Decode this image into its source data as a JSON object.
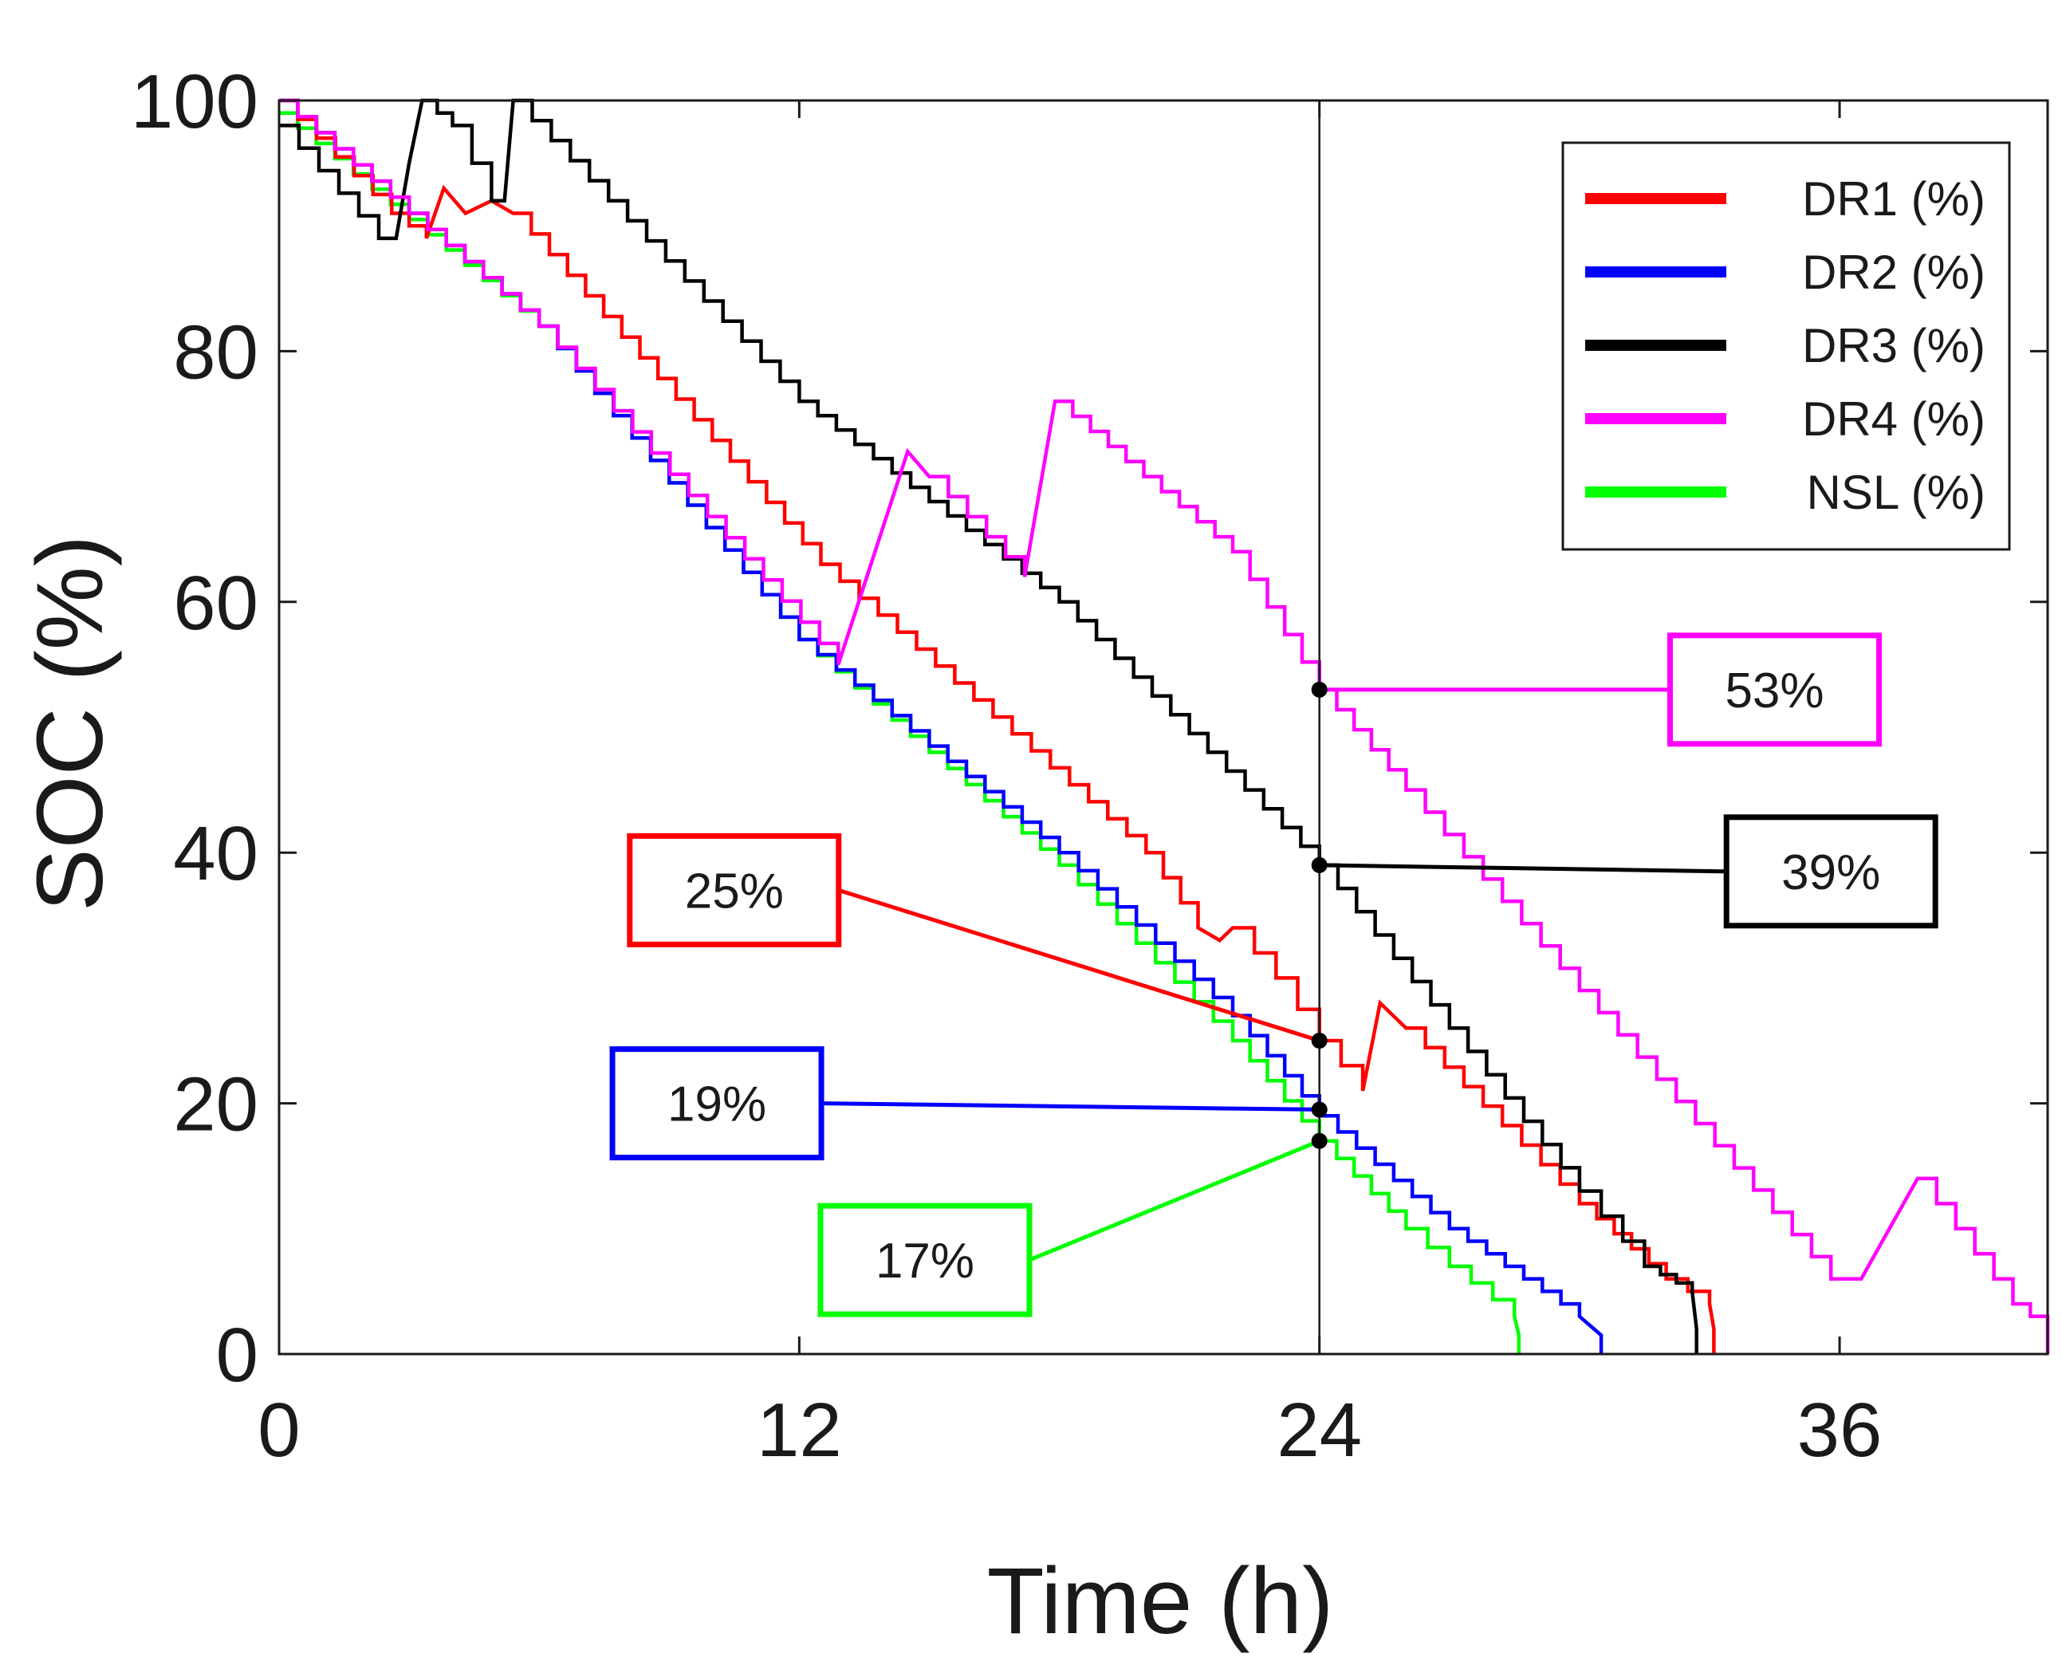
{
  "chart_data": {
    "type": "line",
    "title": "",
    "xlabel": "Time (h)",
    "ylabel": "SOC (%)",
    "xlim": [
      0,
      40.8
    ],
    "ylim": [
      0,
      100
    ],
    "xticks": [
      0,
      12,
      24,
      36
    ],
    "yticks": [
      0,
      20,
      40,
      60,
      80,
      100
    ],
    "grid": false,
    "reference_line_x": 24,
    "legend_position": "top-right",
    "series": [
      {
        "name": "DR1 (%)",
        "color": "#ff0000",
        "x": [
          0,
          2.6,
          3.4,
          3.8,
          4.3,
          4.9,
          5.4,
          12.5,
          20.0,
          21.2,
          21.7,
          22.0,
          23.0,
          24.0,
          25.0,
          25.4,
          26.0,
          30.0,
          32.0,
          33.0,
          33.1,
          33.1
        ],
        "y": [
          100,
          91,
          89,
          93,
          91,
          92,
          91,
          63,
          40,
          34,
          33,
          34,
          30,
          25,
          21,
          28,
          26,
          12,
          6,
          4,
          2,
          0
        ]
      },
      {
        "name": "DR2 (%)",
        "color": "#0000ff",
        "x": [
          0,
          6.0,
          12.0,
          18.0,
          22.0,
          24.0,
          27.0,
          30.0,
          30.5,
          30.5
        ],
        "y": [
          100,
          82,
          57,
          40,
          27,
          19,
          10,
          3,
          1.5,
          0
        ]
      },
      {
        "name": "DR3 (%)",
        "color": "#000000",
        "x": [
          0,
          2.3,
          2.7,
          3.0,
          3.3,
          4.0,
          4.9,
          5.2,
          5.4,
          12.0,
          18.0,
          24.0,
          27.0,
          30.0,
          31.5,
          32.6,
          32.7,
          32.7
        ],
        "y": [
          98,
          89,
          89,
          95,
          100,
          98,
          92,
          92,
          100,
          76,
          60,
          39,
          26,
          13,
          7,
          5,
          2,
          0
        ]
      },
      {
        "name": "DR4 (%)",
        "color": "#ff00ff",
        "x": [
          0,
          6.0,
          12.9,
          14.5,
          15.0,
          17.2,
          17.9,
          22.0,
          24.0,
          26.0,
          30.0,
          35.8,
          36.5,
          37.8,
          40.0,
          40.8,
          40.8
        ],
        "y": [
          100,
          82,
          55,
          72,
          70,
          62,
          76,
          64,
          53,
          45,
          29,
          6,
          6,
          14,
          4,
          2,
          0
        ]
      },
      {
        "name": "NSL (%)",
        "color": "#00ff00",
        "x": [
          0,
          6.0,
          12.0,
          18.0,
          22.0,
          24.0,
          26.0,
          27.0,
          28.5,
          28.6,
          28.6
        ],
        "y": [
          99,
          82,
          57,
          39,
          25,
          17,
          10,
          7,
          3,
          1.5,
          0
        ]
      }
    ],
    "annotations": [
      {
        "label": "53%",
        "color": "#ff00ff",
        "x": 24,
        "y": 53,
        "box_x": 34.5,
        "box_y": 53.0
      },
      {
        "label": "39%",
        "color": "#000000",
        "x": 24,
        "y": 39,
        "box_x": 35.8,
        "box_y": 38.5
      },
      {
        "label": "25%",
        "color": "#ff0000",
        "x": 24,
        "y": 25,
        "box_x": 10.5,
        "box_y": 37.0
      },
      {
        "label": "19%",
        "color": "#0000ff",
        "x": 24,
        "y": 19.5,
        "box_x": 10.1,
        "box_y": 20.0
      },
      {
        "label": "17%",
        "color": "#00ff00",
        "x": 24,
        "y": 17,
        "box_x": 14.9,
        "box_y": 7.5
      }
    ]
  }
}
